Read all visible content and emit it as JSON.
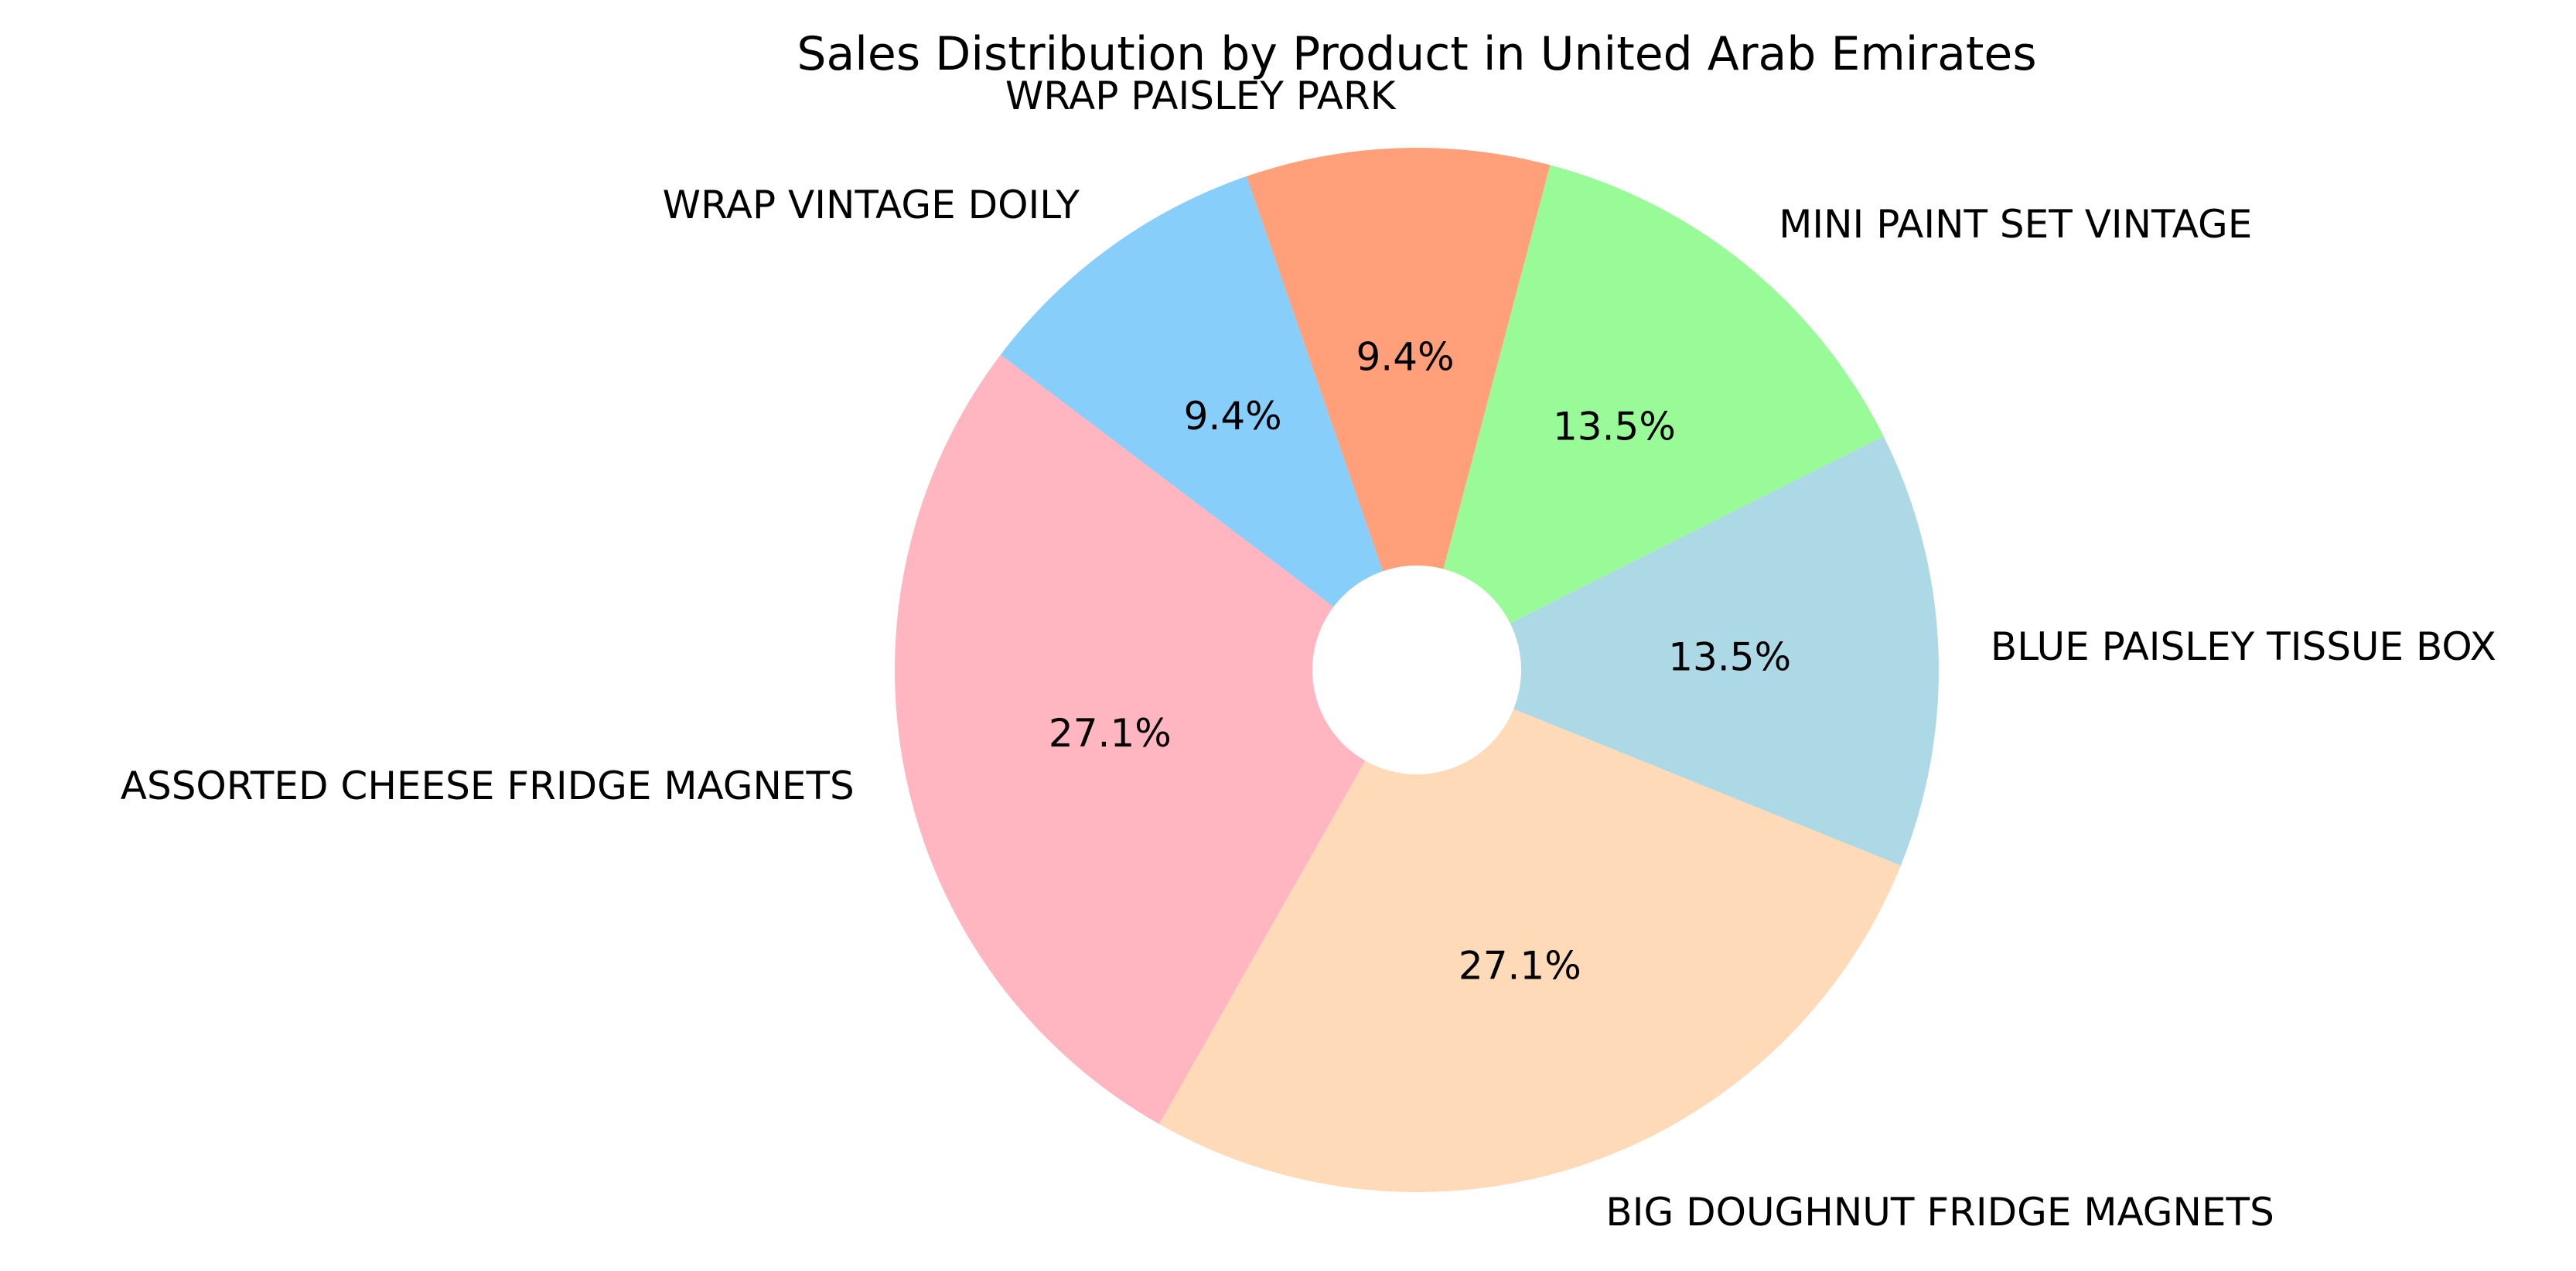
{
  "chart_data": {
    "type": "pie",
    "title": "Sales Distribution by Product in United Arab Emirates",
    "donut_hole": true,
    "slices": [
      {
        "label": "BLUE PAISLEY TISSUE BOX",
        "value": 13.5,
        "pct_label": "13.5%",
        "color": "#ADD8E6"
      },
      {
        "label": "MINI PAINT SET VINTAGE",
        "value": 13.5,
        "pct_label": "13.5%",
        "color": "#98FB98"
      },
      {
        "label": "WRAP PAISLEY PARK",
        "value": 9.4,
        "pct_label": "9.4%",
        "color": "#FFA07A"
      },
      {
        "label": "WRAP  VINTAGE DOILY",
        "value": 9.4,
        "pct_label": "9.4%",
        "color": "#87CEFA"
      },
      {
        "label": "ASSORTED CHEESE FRIDGE MAGNETS",
        "value": 27.1,
        "pct_label": "27.1%",
        "color": "#FFB6C1"
      },
      {
        "label": "BIG DOUGHNUT FRIDGE MAGNETS",
        "value": 27.1,
        "pct_label": "27.1%",
        "color": "#FFDAB9"
      }
    ]
  }
}
